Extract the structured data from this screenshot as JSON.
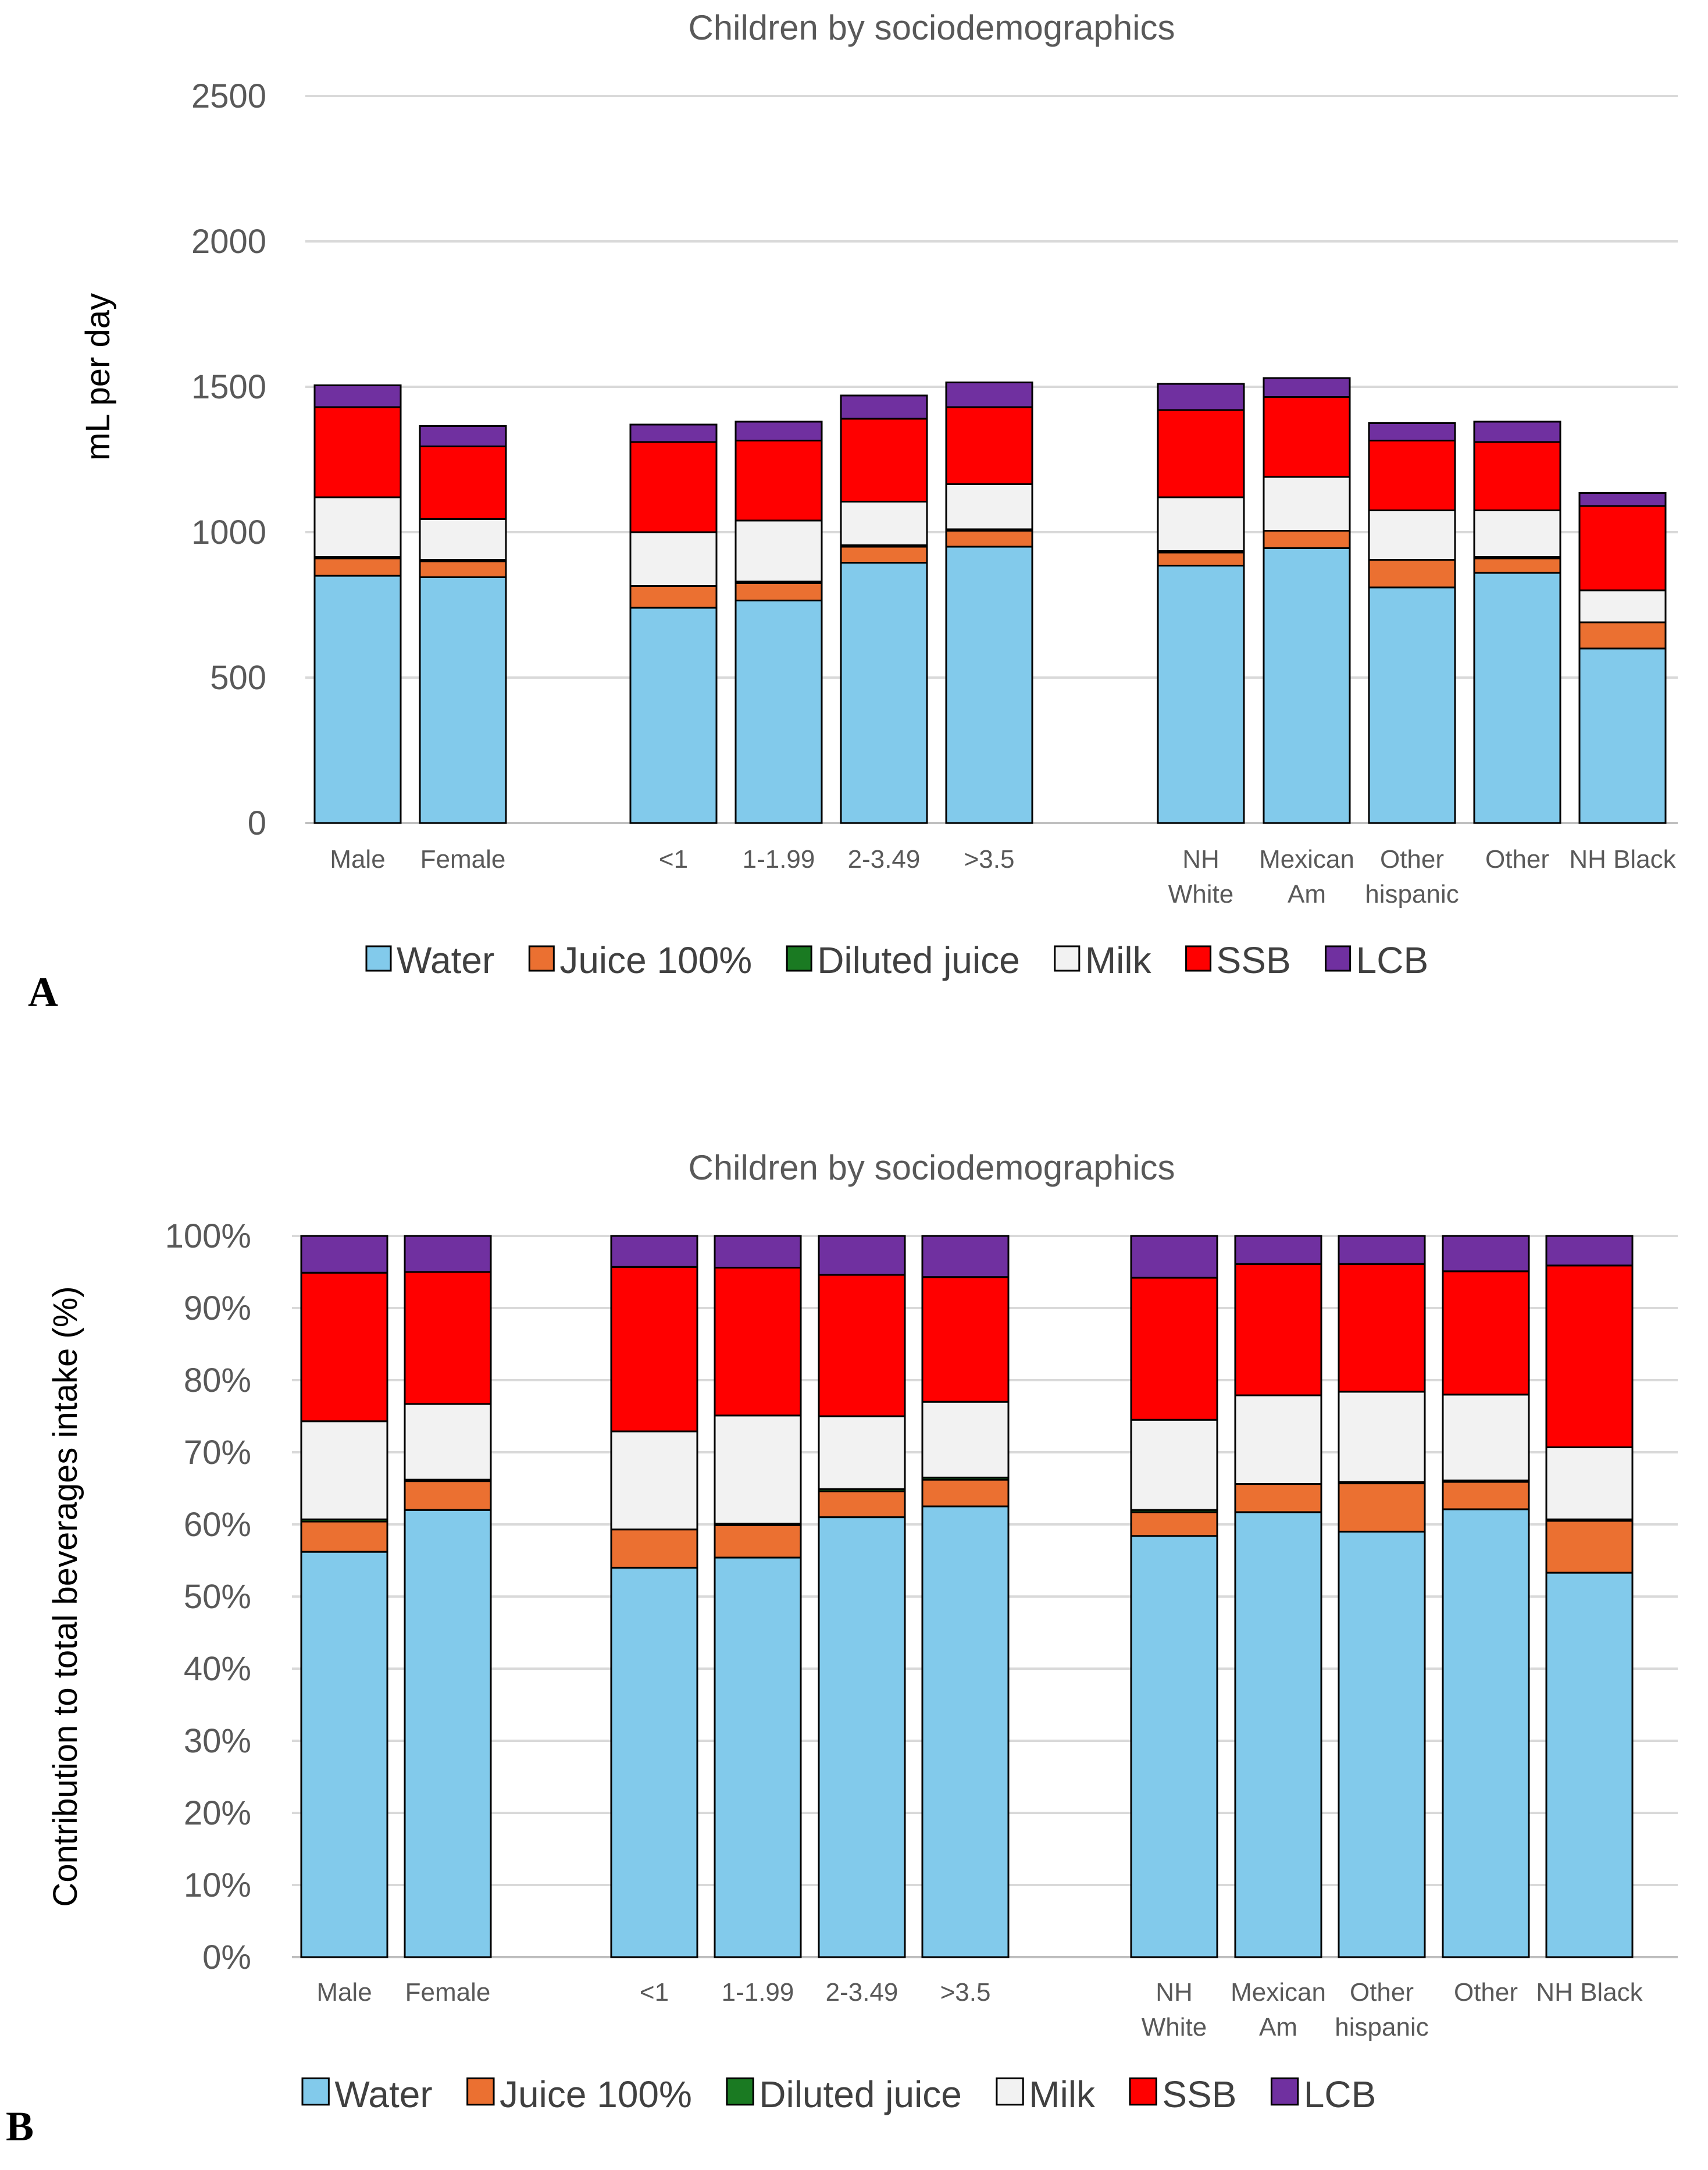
{
  "colors": {
    "Water": "#82caeb",
    "Juice 100%": "#eb7031",
    "Diluted juice": "#1a7a22",
    "Milk": "#f2f2f2",
    "SSB": "#ff0000",
    "LCB": "#7030a0"
  },
  "chart_data": [
    {
      "type": "bar",
      "stacked": true,
      "panel_label": "A",
      "title": "Children by sociodemographics",
      "xlabel": "",
      "ylabel": "mL per day",
      "ylim": [
        0,
        2500
      ],
      "yticks": [
        "0",
        "500",
        "1000",
        "1500",
        "2000",
        "2500"
      ],
      "grid": true,
      "legend_position": "bottom",
      "categories": [
        [
          "Male"
        ],
        [
          "Female"
        ],
        [
          "<1"
        ],
        [
          "1-1.99"
        ],
        [
          "2-3.49"
        ],
        [
          ">3.5"
        ],
        [
          "NH",
          "White"
        ],
        [
          "Mexican",
          "Am"
        ],
        [
          "Other",
          "hispanic"
        ],
        [
          "Other"
        ],
        [
          "NH Black"
        ]
      ],
      "groups": [
        2,
        4,
        5
      ],
      "series": [
        {
          "name": "Water",
          "values": [
            850,
            845,
            740,
            765,
            895,
            950,
            885,
            945,
            810,
            860,
            600
          ]
        },
        {
          "name": "Juice 100%",
          "values": [
            60,
            55,
            75,
            60,
            55,
            55,
            45,
            60,
            95,
            50,
            90
          ]
        },
        {
          "name": "Diluted juice",
          "values": [
            5,
            5,
            0,
            5,
            5,
            5,
            5,
            0,
            0,
            5,
            0
          ]
        },
        {
          "name": "Milk",
          "values": [
            205,
            140,
            185,
            210,
            150,
            155,
            185,
            185,
            170,
            160,
            110
          ]
        },
        {
          "name": "SSB",
          "values": [
            310,
            250,
            310,
            275,
            285,
            265,
            300,
            275,
            240,
            235,
            290
          ]
        },
        {
          "name": "LCB",
          "values": [
            75,
            70,
            60,
            65,
            80,
            85,
            90,
            65,
            60,
            70,
            45
          ]
        }
      ]
    },
    {
      "type": "bar",
      "stacked": true,
      "panel_label": "B",
      "title": "Children by sociodemographics",
      "xlabel": "",
      "ylabel": "Contribution to total beverages intake (%)",
      "ylim": [
        0,
        100
      ],
      "yticks": [
        "0%",
        "10%",
        "20%",
        "30%",
        "40%",
        "50%",
        "60%",
        "70%",
        "80%",
        "90%",
        "100%"
      ],
      "grid": true,
      "legend_position": "bottom",
      "categories": [
        [
          "Male"
        ],
        [
          "Female"
        ],
        [
          "<1"
        ],
        [
          "1-1.99"
        ],
        [
          "2-3.49"
        ],
        [
          ">3.5"
        ],
        [
          "NH",
          "White"
        ],
        [
          "Mexican",
          "Am"
        ],
        [
          "Other",
          "hispanic"
        ],
        [
          "Other"
        ],
        [
          "NH Black"
        ]
      ],
      "groups": [
        2,
        4,
        5
      ],
      "series": [
        {
          "name": "Water",
          "values": [
            56.2,
            62.0,
            54.0,
            55.4,
            61.0,
            62.5,
            58.4,
            61.7,
            59.0,
            62.1,
            53.3
          ]
        },
        {
          "name": "Juice 100%",
          "values": [
            4.2,
            4.0,
            5.3,
            4.5,
            3.6,
            3.7,
            3.3,
            3.9,
            6.7,
            3.8,
            7.2
          ]
        },
        {
          "name": "Diluted juice",
          "values": [
            0.3,
            0.2,
            0.0,
            0.2,
            0.3,
            0.3,
            0.3,
            0.0,
            0.2,
            0.2,
            0.2
          ]
        },
        {
          "name": "Milk",
          "values": [
            13.6,
            10.5,
            13.6,
            15.0,
            10.1,
            10.5,
            12.5,
            12.3,
            12.5,
            11.9,
            10.0
          ]
        },
        {
          "name": "SSB",
          "values": [
            20.6,
            18.3,
            22.8,
            20.5,
            19.6,
            17.3,
            19.7,
            18.2,
            17.7,
            17.1,
            25.2
          ]
        },
        {
          "name": "LCB",
          "values": [
            5.1,
            5.0,
            4.3,
            4.4,
            5.4,
            5.7,
            5.8,
            3.9,
            3.9,
            4.9,
            4.1
          ]
        }
      ]
    }
  ]
}
